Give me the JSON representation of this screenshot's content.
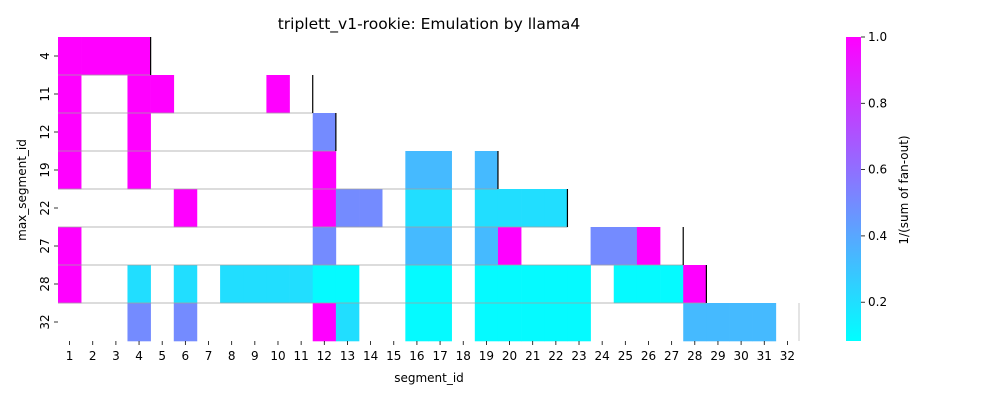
{
  "chart_data": {
    "type": "heatmap",
    "title": "triplett_v1-rookie: Emulation by llama4",
    "xlabel": "segment_id",
    "ylabel": "max_segment_id",
    "x_categories": [
      "1",
      "2",
      "3",
      "4",
      "5",
      "6",
      "7",
      "8",
      "9",
      "10",
      "11",
      "12",
      "13",
      "14",
      "15",
      "16",
      "17",
      "18",
      "19",
      "20",
      "21",
      "22",
      "23",
      "24",
      "25",
      "26",
      "27",
      "28",
      "29",
      "30",
      "31",
      "32"
    ],
    "y_categories": [
      "4",
      "11",
      "12",
      "19",
      "22",
      "27",
      "28",
      "32"
    ],
    "cells": [
      {
        "row": "4",
        "col": "1",
        "value": 1.0
      },
      {
        "row": "4",
        "col": "2",
        "value": 1.0
      },
      {
        "row": "4",
        "col": "3",
        "value": 1.0
      },
      {
        "row": "4",
        "col": "4",
        "value": 1.0
      },
      {
        "row": "11",
        "col": "1",
        "value": 1.0
      },
      {
        "row": "11",
        "col": "4",
        "value": 1.0
      },
      {
        "row": "11",
        "col": "5",
        "value": 1.0
      },
      {
        "row": "11",
        "col": "10",
        "value": 1.0
      },
      {
        "row": "12",
        "col": "1",
        "value": 1.0
      },
      {
        "row": "12",
        "col": "4",
        "value": 1.0
      },
      {
        "row": "12",
        "col": "12",
        "value": 0.5
      },
      {
        "row": "19",
        "col": "1",
        "value": 1.0
      },
      {
        "row": "19",
        "col": "4",
        "value": 1.0
      },
      {
        "row": "19",
        "col": "12",
        "value": 1.0
      },
      {
        "row": "19",
        "col": "16",
        "value": 0.33
      },
      {
        "row": "19",
        "col": "17",
        "value": 0.33
      },
      {
        "row": "19",
        "col": "19",
        "value": 0.33
      },
      {
        "row": "22",
        "col": "6",
        "value": 1.0
      },
      {
        "row": "22",
        "col": "12",
        "value": 1.0
      },
      {
        "row": "22",
        "col": "13",
        "value": 0.5
      },
      {
        "row": "22",
        "col": "14",
        "value": 0.5
      },
      {
        "row": "22",
        "col": "16",
        "value": 0.2
      },
      {
        "row": "22",
        "col": "17",
        "value": 0.2
      },
      {
        "row": "22",
        "col": "19",
        "value": 0.2
      },
      {
        "row": "22",
        "col": "20",
        "value": 0.2
      },
      {
        "row": "22",
        "col": "21",
        "value": 0.2
      },
      {
        "row": "22",
        "col": "22",
        "value": 0.2
      },
      {
        "row": "27",
        "col": "1",
        "value": 1.0
      },
      {
        "row": "27",
        "col": "12",
        "value": 0.5
      },
      {
        "row": "27",
        "col": "16",
        "value": 0.33
      },
      {
        "row": "27",
        "col": "17",
        "value": 0.33
      },
      {
        "row": "27",
        "col": "19",
        "value": 0.33
      },
      {
        "row": "27",
        "col": "20",
        "value": 1.0
      },
      {
        "row": "27",
        "col": "24",
        "value": 0.5
      },
      {
        "row": "27",
        "col": "25",
        "value": 0.5
      },
      {
        "row": "27",
        "col": "26",
        "value": 1.0
      },
      {
        "row": "28",
        "col": "1",
        "value": 1.0
      },
      {
        "row": "28",
        "col": "4",
        "value": 0.2
      },
      {
        "row": "28",
        "col": "6",
        "value": 0.2
      },
      {
        "row": "28",
        "col": "8",
        "value": 0.2
      },
      {
        "row": "28",
        "col": "9",
        "value": 0.2
      },
      {
        "row": "28",
        "col": "10",
        "value": 0.2
      },
      {
        "row": "28",
        "col": "11",
        "value": 0.2
      },
      {
        "row": "28",
        "col": "12",
        "value": 0.1
      },
      {
        "row": "28",
        "col": "13",
        "value": 0.1
      },
      {
        "row": "28",
        "col": "16",
        "value": 0.1
      },
      {
        "row": "28",
        "col": "17",
        "value": 0.1
      },
      {
        "row": "28",
        "col": "19",
        "value": 0.1
      },
      {
        "row": "28",
        "col": "20",
        "value": 0.1
      },
      {
        "row": "28",
        "col": "21",
        "value": 0.1
      },
      {
        "row": "28",
        "col": "22",
        "value": 0.1
      },
      {
        "row": "28",
        "col": "23",
        "value": 0.1
      },
      {
        "row": "28",
        "col": "25",
        "value": 0.1
      },
      {
        "row": "28",
        "col": "26",
        "value": 0.1
      },
      {
        "row": "28",
        "col": "27",
        "value": 0.1
      },
      {
        "row": "28",
        "col": "28",
        "value": 1.0
      },
      {
        "row": "32",
        "col": "4",
        "value": 0.5
      },
      {
        "row": "32",
        "col": "6",
        "value": 0.5
      },
      {
        "row": "32",
        "col": "12",
        "value": 1.0
      },
      {
        "row": "32",
        "col": "13",
        "value": 0.2
      },
      {
        "row": "32",
        "col": "16",
        "value": 0.1
      },
      {
        "row": "32",
        "col": "17",
        "value": 0.1
      },
      {
        "row": "32",
        "col": "19",
        "value": 0.1
      },
      {
        "row": "32",
        "col": "20",
        "value": 0.1
      },
      {
        "row": "32",
        "col": "21",
        "value": 0.1
      },
      {
        "row": "32",
        "col": "22",
        "value": 0.1
      },
      {
        "row": "32",
        "col": "23",
        "value": 0.1
      },
      {
        "row": "32",
        "col": "28",
        "value": 0.33
      },
      {
        "row": "32",
        "col": "29",
        "value": 0.33
      },
      {
        "row": "32",
        "col": "30",
        "value": 0.33
      },
      {
        "row": "32",
        "col": "31",
        "value": 0.33
      }
    ],
    "row_end_segment": {
      "4": 4,
      "11": 11,
      "12": 12,
      "19": 19,
      "22": 22,
      "27": 27,
      "28": 28,
      "32": 32
    },
    "colorbar": {
      "label": "1/(sum of fan-out)",
      "range": [
        0.083,
        1.0
      ],
      "ticks": [
        "0.2",
        "0.4",
        "0.6",
        "0.8",
        "1.0"
      ],
      "tick_values": [
        0.2,
        0.4,
        0.6,
        0.8,
        1.0
      ],
      "colormap": "cool",
      "color_min": "#00ffff",
      "color_max": "#ff00ff"
    },
    "grid": false
  }
}
